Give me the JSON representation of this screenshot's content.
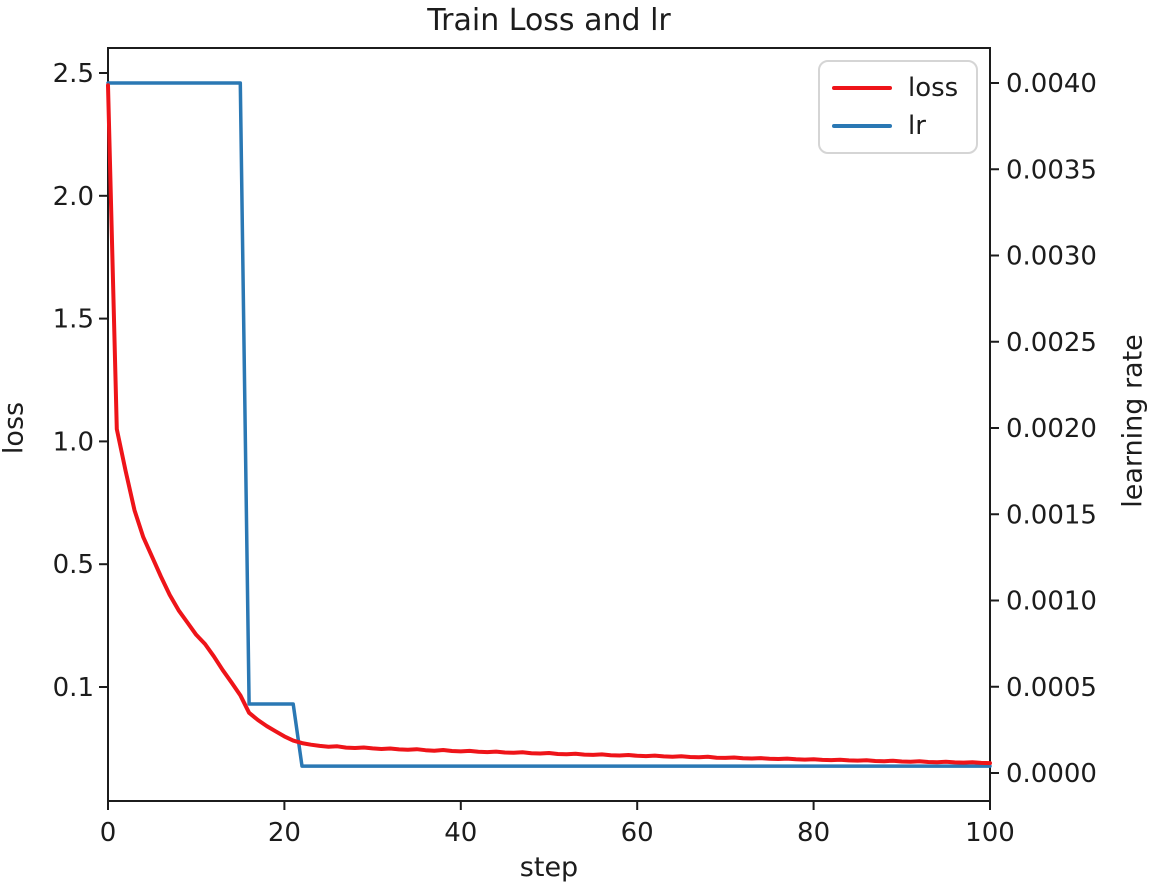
{
  "figure": {
    "title": "Train Loss and lr",
    "xlabel": "step",
    "ylabel_left": "loss",
    "ylabel_right": "learning rate"
  },
  "legend": {
    "position": "upper right",
    "items": [
      {
        "label": "loss",
        "color": "#ee1419"
      },
      {
        "label": "lr",
        "color": "#2a78b4"
      }
    ]
  },
  "chart_data": {
    "type": "line",
    "title": "Train Loss and lr",
    "xlabel": "step",
    "ylabel_left": "loss",
    "ylabel_right": "learning rate",
    "x_range": [
      0,
      100
    ],
    "x_tick_labels": [
      "0",
      "20",
      "40",
      "60",
      "80",
      "100"
    ],
    "left_axis": {
      "label": "loss",
      "tick_labels": [
        "2.5",
        "2.0",
        "1.5",
        "1.0",
        "0.5",
        "0.1"
      ],
      "scale_note": "ticks are evenly spaced on screen despite uneven values (nonlinear scale)"
    },
    "right_axis": {
      "label": "learning rate",
      "tick_labels": [
        "0.0040",
        "0.0035",
        "0.0030",
        "0.0025",
        "0.0020",
        "0.0015",
        "0.0010",
        "0.0005",
        "0.0000"
      ],
      "range": [
        0.0,
        0.004
      ]
    },
    "grid": false,
    "series": [
      {
        "name": "loss",
        "axis": "left",
        "color": "#ee1419",
        "x_step_interval": 1,
        "values": [
          2.45,
          1.05,
          0.88,
          0.72,
          0.61,
          0.53,
          0.46,
          0.4,
          0.35,
          0.31,
          0.27,
          0.24,
          0.2,
          0.155,
          0.115,
          0.092,
          0.075,
          0.068,
          0.062,
          0.057,
          0.052,
          0.048,
          0.0455,
          0.044,
          0.0428,
          0.042,
          0.0424,
          0.0412,
          0.0408,
          0.0413,
          0.0404,
          0.0398,
          0.0403,
          0.0394,
          0.039,
          0.0396,
          0.0386,
          0.0382,
          0.0388,
          0.0379,
          0.0375,
          0.038,
          0.0371,
          0.0368,
          0.0373,
          0.0364,
          0.0361,
          0.0366,
          0.0357,
          0.0354,
          0.0359,
          0.035,
          0.0347,
          0.0352,
          0.0344,
          0.0341,
          0.0346,
          0.0338,
          0.0335,
          0.034,
          0.0332,
          0.0329,
          0.0334,
          0.0326,
          0.0323,
          0.0328,
          0.032,
          0.0318,
          0.0322,
          0.0314,
          0.0312,
          0.0316,
          0.0309,
          0.0306,
          0.031,
          0.0303,
          0.0301,
          0.0305,
          0.0298,
          0.0295,
          0.0299,
          0.0292,
          0.029,
          0.0294,
          0.0287,
          0.0285,
          0.0289,
          0.0282,
          0.028,
          0.0284,
          0.0277,
          0.0275,
          0.0279,
          0.0272,
          0.027,
          0.0274,
          0.0268,
          0.0266,
          0.0269,
          0.0263,
          0.0261
        ]
      },
      {
        "name": "lr",
        "axis": "right",
        "color": "#2a78b4",
        "schedule_segments": [
          {
            "start_step": 0,
            "end_step": 15,
            "value": 0.004
          },
          {
            "start_step": 16,
            "end_step": 21,
            "value": 0.0004
          },
          {
            "start_step": 22,
            "end_step": 100,
            "value": 4e-05
          }
        ]
      }
    ]
  }
}
